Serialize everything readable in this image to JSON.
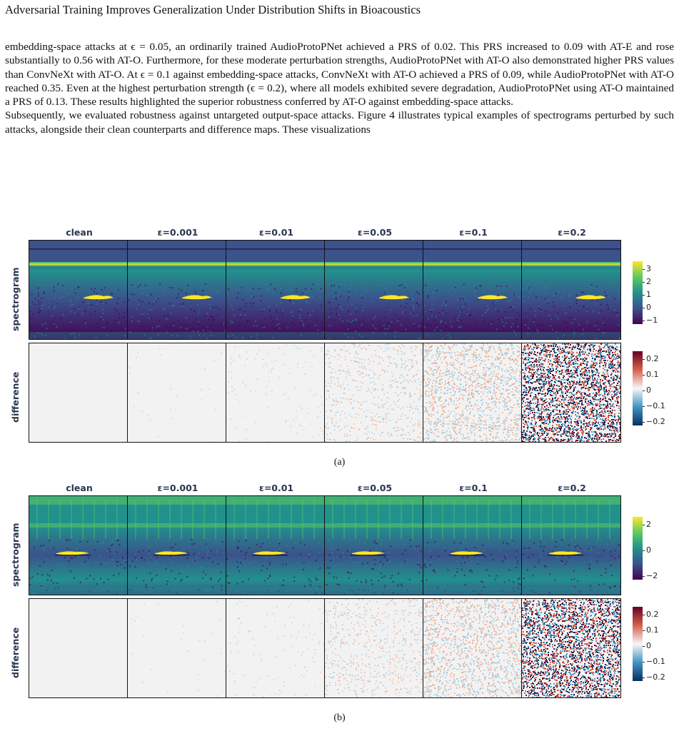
{
  "header": {
    "title": "Adversarial Training Improves Generalization Under Distribution Shifts in Bioacoustics"
  },
  "body": {
    "paragraph_1": "embedding-space attacks at ϵ = 0.05, an ordinarily trained AudioProtoPNet achieved a PRS of 0.02. This PRS increased to 0.09 with AT-E and rose substantially to 0.56 with AT-O. Furthermore, for these moderate perturbation strengths, AudioProtoPNet with AT-O also demonstrated higher PRS values than ConvNeXt with AT-O. At ϵ = 0.1 against embedding-space attacks, ConvNeXt with AT-O achieved a PRS of 0.09, while AudioProtoPNet with AT-O reached 0.35. Even at the highest perturbation strength (ϵ = 0.2), where all models exhibited severe degradation, AudioProtoPNet using AT-O maintained a PRS of 0.13. These results highlighted the superior robustness conferred by AT-O against embedding-space attacks.",
    "paragraph_2": "Subsequently, we evaluated robustness against untargeted output-space attacks. Figure 4 illustrates typical examples of spectrograms perturbed by such attacks, alongside their clean counterparts and difference maps. These visualizations"
  },
  "figure": {
    "columns": [
      "clean",
      "ε=0.001",
      "ε=0.01",
      "ε=0.05",
      "ε=0.1",
      "ε=0.2"
    ],
    "row_labels": {
      "spectrogram": "spectrogram",
      "difference": "difference"
    },
    "panels": [
      {
        "caption": "(a)",
        "spectrogram_cbar_ticks": [
          "3",
          "2",
          "1",
          "0",
          "−1"
        ],
        "difference_cbar_ticks": [
          "0.2",
          "0.1",
          "0",
          "−0.1",
          "−0.2"
        ]
      },
      {
        "caption": "(b)",
        "spectrogram_cbar_ticks": [
          "2",
          "0",
          "−2"
        ],
        "difference_cbar_ticks": [
          "0.2",
          "0.1",
          "0",
          "−0.1",
          "−0.2"
        ]
      }
    ],
    "colors": {
      "viridis": [
        "#440154",
        "#3b528b",
        "#21918c",
        "#5ec962",
        "#fde725"
      ],
      "rdbu": [
        "#053061",
        "#4393c3",
        "#f7f7f7",
        "#d6604d",
        "#67001f"
      ]
    },
    "noise_levels": [
      0,
      0.01,
      0.04,
      0.22,
      0.5,
      1.0
    ]
  }
}
